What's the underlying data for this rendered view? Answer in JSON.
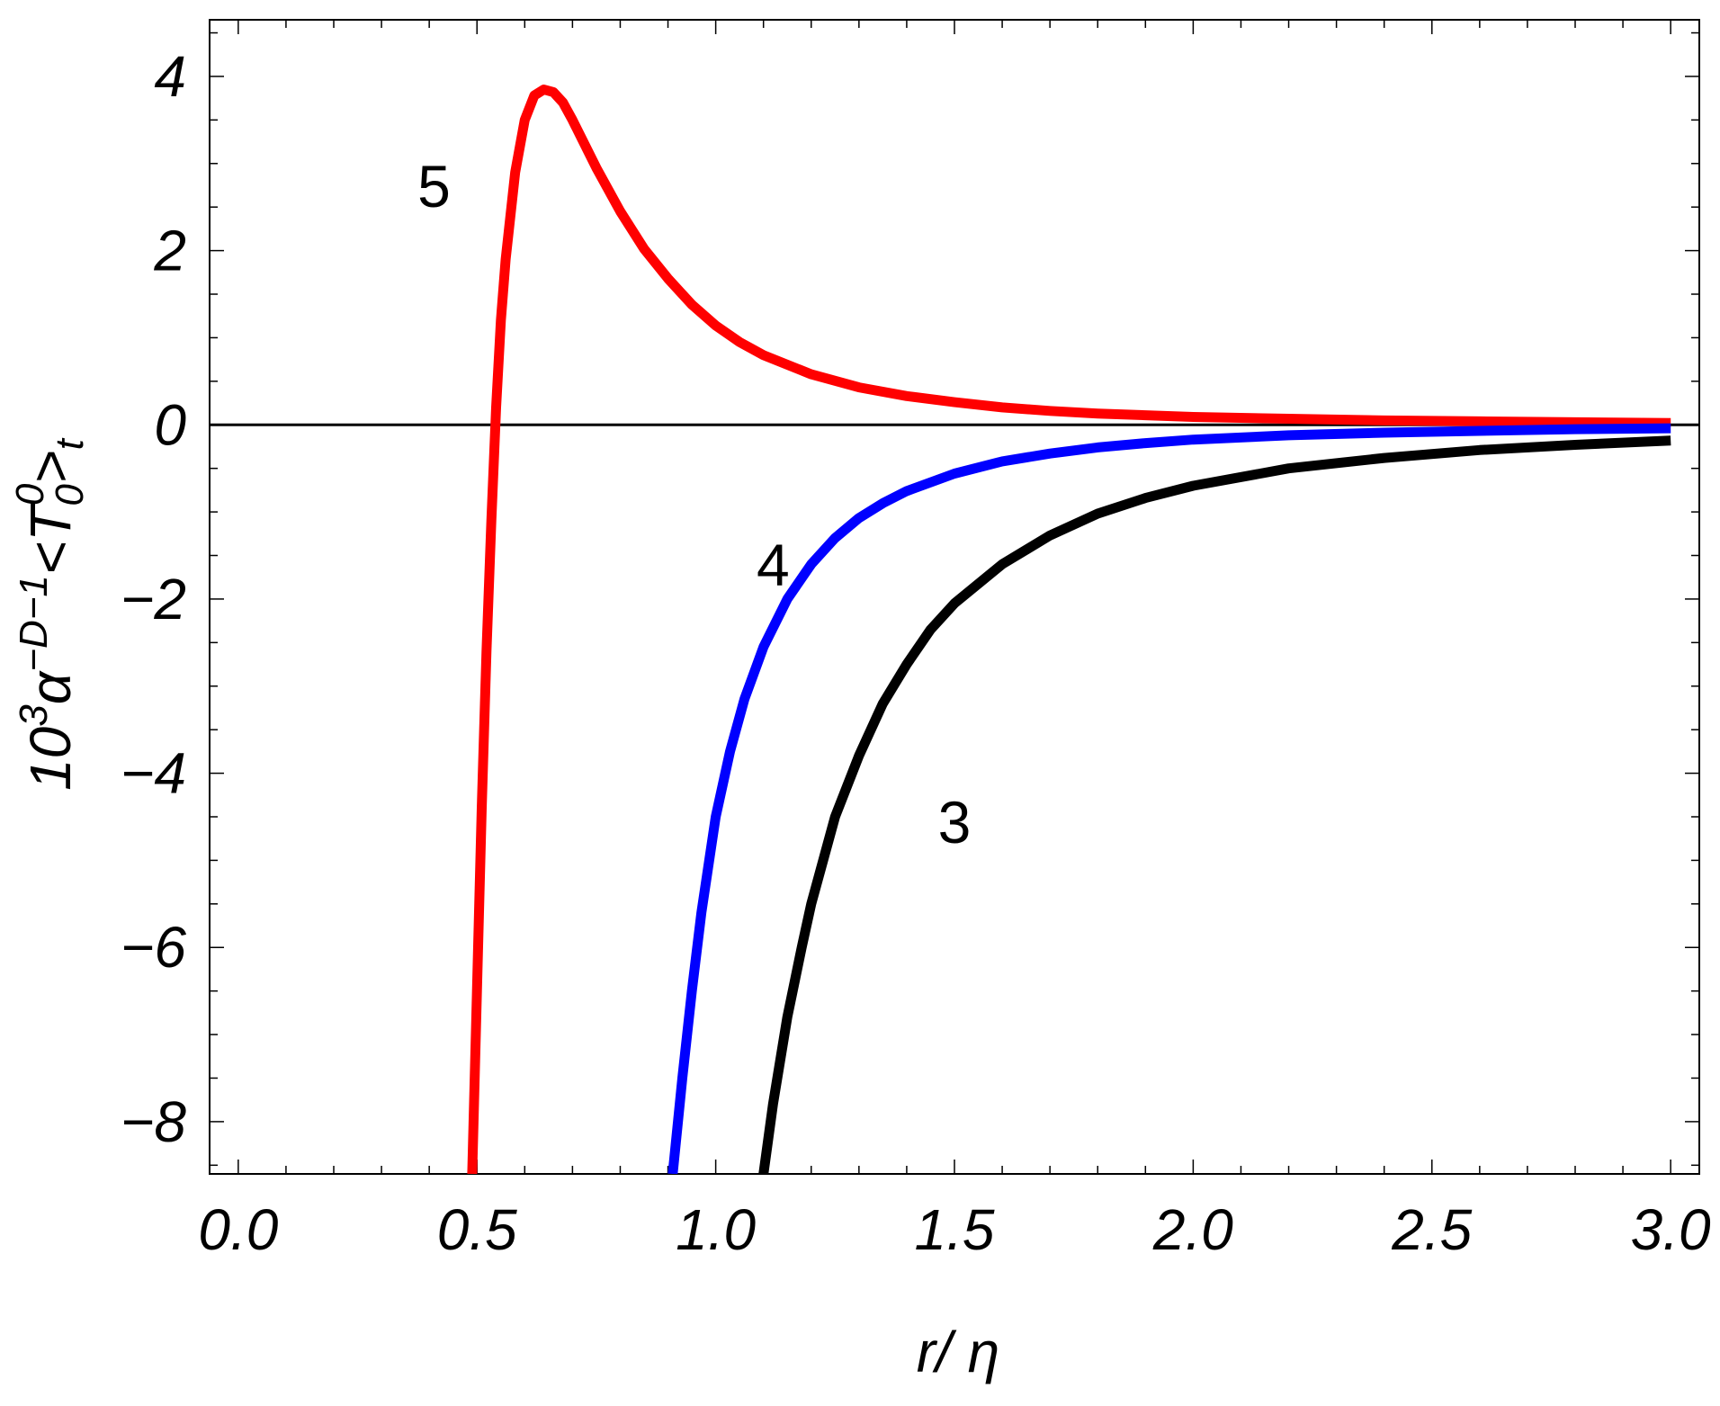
{
  "chart_data": {
    "type": "line",
    "xlabel": "r/ η",
    "ylabel": "10³α^{−D−1}<T₀⁰>ₜ",
    "ylabel_parts": {
      "coef": "10",
      "coef_exp": "3",
      "alpha": "α",
      "alpha_exp": "−D−1",
      "open": "<T",
      "sub0": "0",
      "sup0": "0",
      "close": ">",
      "subt": "t"
    },
    "xlim": [
      -0.06,
      3.06
    ],
    "ylim": [
      -8.6,
      4.65
    ],
    "x_ticks": [
      0.0,
      0.5,
      1.0,
      1.5,
      2.0,
      2.5,
      3.0
    ],
    "x_tick_labels": [
      "0.0",
      "0.5",
      "1.0",
      "1.5",
      "2.0",
      "2.5",
      "3.0"
    ],
    "y_ticks": [
      -8,
      -6,
      -4,
      -2,
      0,
      2,
      4
    ],
    "y_tick_labels": [
      "−8",
      "−6",
      "−4",
      "−2",
      "0",
      "2",
      "4"
    ],
    "grid": false,
    "legend": "none",
    "series": [
      {
        "label": "5",
        "color": "#ff0000",
        "x": [
          0.49,
          0.5,
          0.51,
          0.52,
          0.53,
          0.54,
          0.55,
          0.56,
          0.58,
          0.6,
          0.62,
          0.64,
          0.66,
          0.68,
          0.7,
          0.72,
          0.75,
          0.8,
          0.85,
          0.9,
          0.95,
          1.0,
          1.05,
          1.1,
          1.2,
          1.3,
          1.4,
          1.5,
          1.6,
          1.7,
          1.8,
          1.9,
          2.0,
          2.2,
          2.4,
          2.6,
          2.8,
          3.0
        ],
        "y": [
          -8.6,
          -6.5,
          -4.4,
          -2.6,
          -1.1,
          0.2,
          1.2,
          1.9,
          2.9,
          3.5,
          3.78,
          3.85,
          3.82,
          3.7,
          3.5,
          3.28,
          2.95,
          2.45,
          2.02,
          1.68,
          1.38,
          1.14,
          0.95,
          0.8,
          0.58,
          0.43,
          0.33,
          0.26,
          0.2,
          0.16,
          0.13,
          0.11,
          0.09,
          0.07,
          0.05,
          0.04,
          0.03,
          0.02
        ]
      },
      {
        "label": "4",
        "color": "#0000ff",
        "x": [
          0.91,
          0.93,
          0.95,
          0.97,
          1.0,
          1.03,
          1.06,
          1.1,
          1.15,
          1.2,
          1.25,
          1.3,
          1.35,
          1.4,
          1.5,
          1.6,
          1.7,
          1.8,
          1.9,
          2.0,
          2.2,
          2.4,
          2.6,
          2.8,
          3.0
        ],
        "y": [
          -8.6,
          -7.5,
          -6.5,
          -5.6,
          -4.5,
          -3.75,
          -3.15,
          -2.55,
          -2.0,
          -1.6,
          -1.3,
          -1.07,
          -0.9,
          -0.76,
          -0.56,
          -0.42,
          -0.33,
          -0.26,
          -0.21,
          -0.17,
          -0.12,
          -0.09,
          -0.07,
          -0.05,
          -0.04
        ]
      },
      {
        "label": "3",
        "color": "#000000",
        "x": [
          1.1,
          1.12,
          1.15,
          1.18,
          1.2,
          1.25,
          1.3,
          1.35,
          1.4,
          1.45,
          1.5,
          1.6,
          1.7,
          1.8,
          1.9,
          2.0,
          2.2,
          2.4,
          2.6,
          2.8,
          3.0
        ],
        "y": [
          -8.6,
          -7.8,
          -6.8,
          -6.0,
          -5.5,
          -4.5,
          -3.8,
          -3.2,
          -2.75,
          -2.35,
          -2.05,
          -1.6,
          -1.27,
          -1.02,
          -0.84,
          -0.7,
          -0.5,
          -0.38,
          -0.29,
          -0.23,
          -0.18
        ]
      }
    ],
    "annotations": [
      {
        "text": "5",
        "x": 0.41,
        "y": 2.75
      },
      {
        "text": "4",
        "x": 1.12,
        "y": -1.6
      },
      {
        "text": "3",
        "x": 1.5,
        "y": -4.55
      }
    ]
  }
}
